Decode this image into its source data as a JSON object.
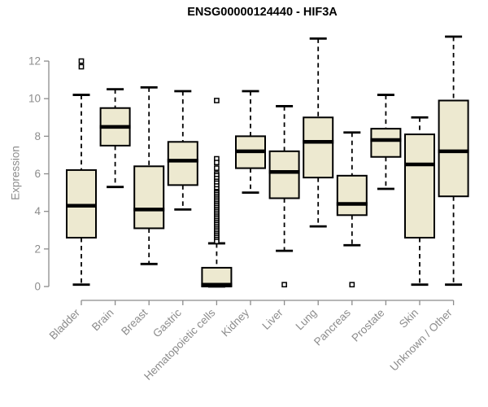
{
  "title": "ENSG00000124440 - HIF3A",
  "colors": {
    "background": "#FFFFFF",
    "box_fill": "#EDE9D0",
    "box_border": "#000000",
    "median": "#000000",
    "whisker": "#000000",
    "outlier_border": "#000000",
    "axis": "#8C8C8C",
    "title_text": "#000000"
  },
  "chart_data": {
    "type": "boxplot",
    "title": "ENSG00000124440 - HIF3A",
    "xlabel": "",
    "ylabel": "Expression",
    "ylim": [
      0,
      12
    ],
    "yticks": [
      0,
      2,
      4,
      6,
      8,
      10,
      12
    ],
    "grid": false,
    "legend": false,
    "categories": [
      "Bladder",
      "Brain",
      "Breast",
      "Gastric",
      "Hematopoietic cells",
      "Kidney",
      "Liver",
      "Lung",
      "Pancreas",
      "Prostate",
      "Skin",
      "Unknown / Other"
    ],
    "series": [
      {
        "name": "Bladder",
        "whisker_low": 0.1,
        "q1": 2.6,
        "median": 4.3,
        "q3": 6.2,
        "whisker_high": 10.2,
        "outliers": [
          11.7,
          12.0
        ]
      },
      {
        "name": "Brain",
        "whisker_low": 5.3,
        "q1": 7.5,
        "median": 8.5,
        "q3": 9.5,
        "whisker_high": 10.5,
        "outliers": []
      },
      {
        "name": "Breast",
        "whisker_low": 1.2,
        "q1": 3.1,
        "median": 4.1,
        "q3": 6.4,
        "whisker_high": 10.6,
        "outliers": []
      },
      {
        "name": "Gastric",
        "whisker_low": 4.1,
        "q1": 5.4,
        "median": 6.7,
        "q3": 7.7,
        "whisker_high": 10.4,
        "outliers": []
      },
      {
        "name": "Hematopoietic cells",
        "whisker_low": 0.0,
        "q1": 0.0,
        "median": 0.1,
        "q3": 1.0,
        "whisker_high": 2.3,
        "outliers": [
          9.9,
          6.8,
          6.6,
          6.3,
          6.0,
          5.9,
          5.75,
          5.6,
          5.5,
          5.35,
          5.2,
          5.05,
          5.0,
          4.9,
          4.8,
          4.7,
          4.6,
          4.5,
          4.4,
          4.3,
          4.2,
          4.1,
          4.0,
          3.9,
          3.8,
          3.7,
          3.6,
          3.5,
          3.4,
          3.3,
          3.2,
          3.1,
          3.0,
          2.9,
          2.8,
          2.7,
          2.6,
          2.5,
          2.4
        ]
      },
      {
        "name": "Kidney",
        "whisker_low": 5.0,
        "q1": 6.3,
        "median": 7.2,
        "q3": 8.0,
        "whisker_high": 10.4,
        "outliers": []
      },
      {
        "name": "Liver",
        "whisker_low": 1.9,
        "q1": 4.7,
        "median": 6.1,
        "q3": 7.2,
        "whisker_high": 9.6,
        "outliers": [
          0.1
        ]
      },
      {
        "name": "Lung",
        "whisker_low": 3.2,
        "q1": 5.8,
        "median": 7.7,
        "q3": 9.0,
        "whisker_high": 13.2,
        "outliers": []
      },
      {
        "name": "Pancreas",
        "whisker_low": 2.2,
        "q1": 3.8,
        "median": 4.4,
        "q3": 5.9,
        "whisker_high": 8.2,
        "outliers": [
          0.1
        ]
      },
      {
        "name": "Prostate",
        "whisker_low": 5.2,
        "q1": 6.9,
        "median": 7.8,
        "q3": 8.4,
        "whisker_high": 10.2,
        "outliers": []
      },
      {
        "name": "Skin",
        "whisker_low": 0.1,
        "q1": 2.6,
        "median": 6.5,
        "q3": 8.1,
        "whisker_high": 9.0,
        "outliers": []
      },
      {
        "name": "Unknown / Other",
        "whisker_low": 0.1,
        "q1": 4.8,
        "median": 7.2,
        "q3": 9.9,
        "whisker_high": 13.3,
        "outliers": []
      }
    ]
  }
}
